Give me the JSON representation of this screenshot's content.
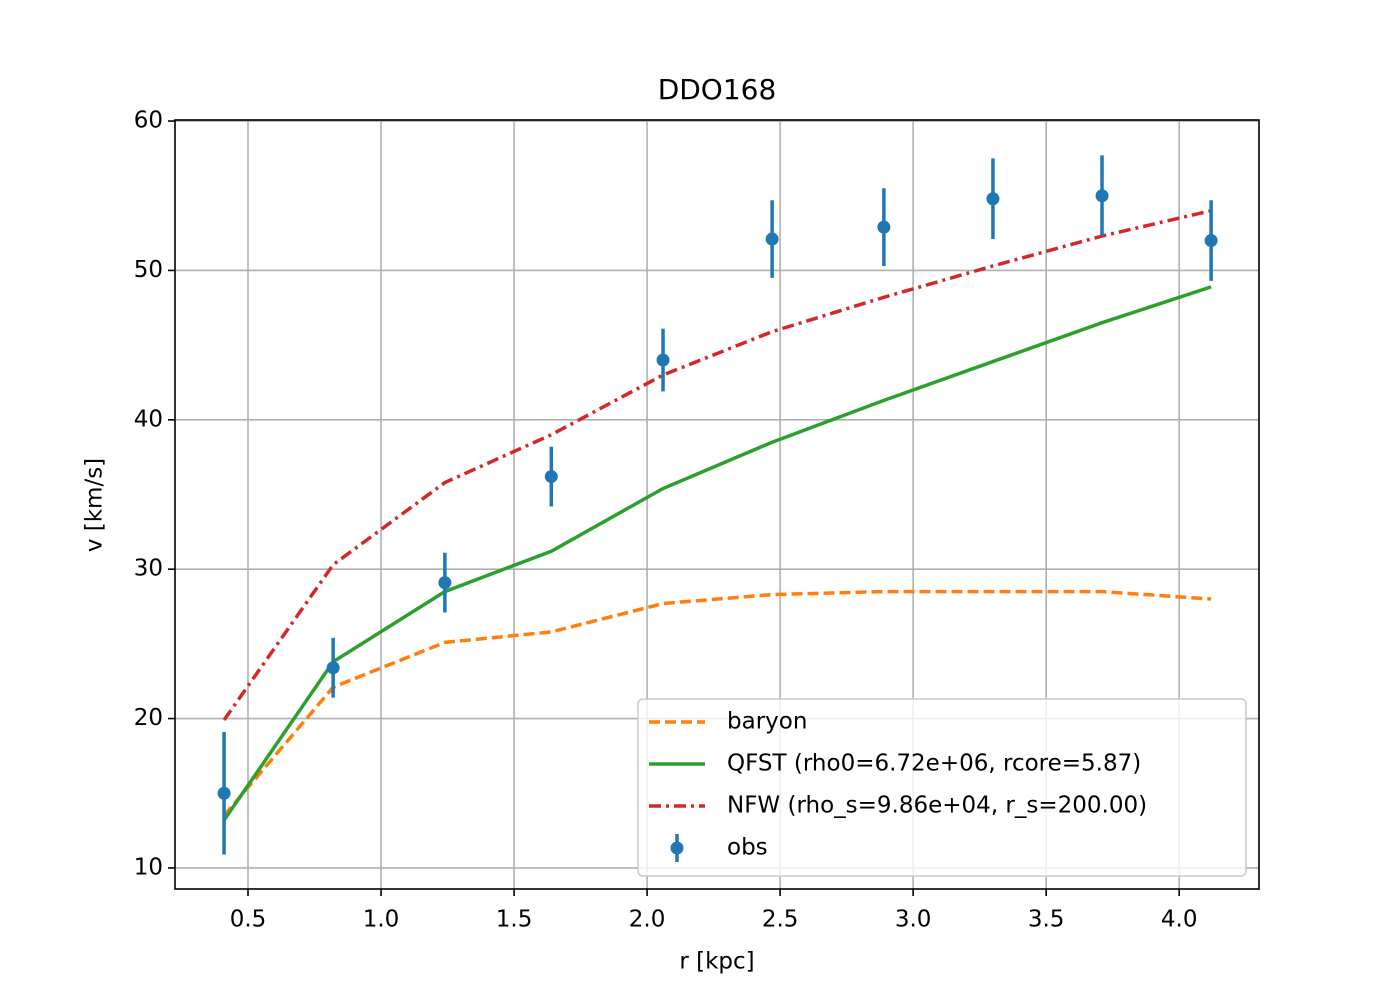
{
  "chart_data": {
    "type": "line",
    "title": "DDO168",
    "x_label": "r [kpc]",
    "y_label": "v [km/s]",
    "x": [
      0.41,
      0.82,
      1.24,
      1.64,
      2.06,
      2.47,
      2.89,
      3.3,
      3.71,
      4.12
    ],
    "series": [
      {
        "name": "baryon",
        "color": "#ff7f0e",
        "style": "dashed",
        "values": [
          13.5,
          22.1,
          25.1,
          25.8,
          27.7,
          28.3,
          28.5,
          28.5,
          28.5,
          28.0
        ]
      },
      {
        "name": "QFST (rho0=6.72e+06, rcore=5.87)",
        "color": "#2ca02c",
        "style": "solid",
        "values": [
          13.2,
          23.8,
          28.5,
          31.2,
          35.4,
          38.5,
          41.3,
          43.9,
          46.5,
          48.9
        ]
      },
      {
        "name": "NFW (rho_s=9.86e+04, r_s=200.00)",
        "color": "#d62728",
        "style": "dashdot",
        "values": [
          19.9,
          30.3,
          35.8,
          39.0,
          43.0,
          45.9,
          48.2,
          50.3,
          52.3,
          54.0
        ]
      },
      {
        "name": "obs",
        "color": "#1f77b4",
        "style": "errorbar",
        "values": [
          15.0,
          23.4,
          29.1,
          36.2,
          44.0,
          52.1,
          52.9,
          54.8,
          55.0,
          52.0
        ],
        "errors": [
          4.1,
          2.0,
          2.0,
          2.0,
          2.1,
          2.6,
          2.6,
          2.7,
          2.7,
          2.7
        ]
      }
    ],
    "xlim": [
      0.2256,
      4.3
    ],
    "ylim": [
      8.59,
      60.07
    ],
    "xticks": [
      {
        "value": 0.5,
        "label": "0.5"
      },
      {
        "value": 1,
        "label": "1.0"
      },
      {
        "value": 1.5,
        "label": "1.5"
      },
      {
        "value": 2,
        "label": "2.0"
      },
      {
        "value": 2.5,
        "label": "2.5"
      },
      {
        "value": 3,
        "label": "3.0"
      },
      {
        "value": 3.5,
        "label": "3.5"
      },
      {
        "value": 4,
        "label": "4.0"
      }
    ],
    "yticks": [
      10,
      20,
      30,
      40,
      50,
      60
    ],
    "grid": true,
    "legend": "lower right"
  }
}
